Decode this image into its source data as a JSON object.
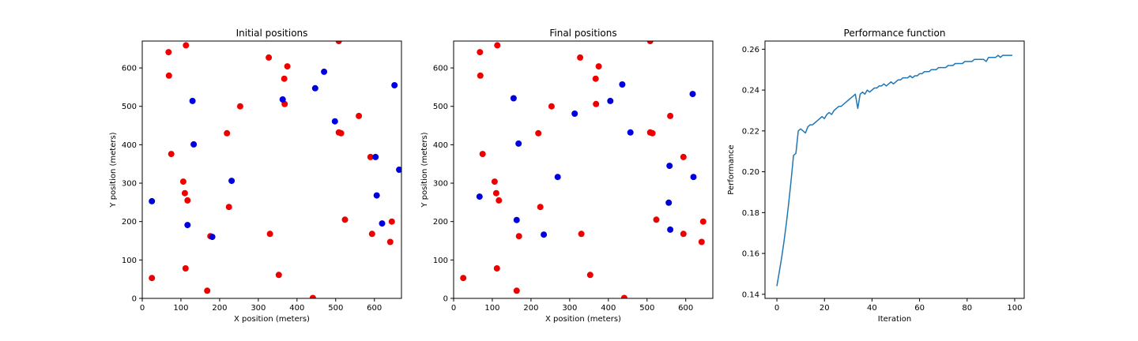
{
  "chart_data": [
    {
      "type": "scatter",
      "title": "Initial positions",
      "xlabel": "X position (meters)",
      "ylabel": "Y position (meters)",
      "xlim": [
        0,
        670
      ],
      "ylim": [
        0,
        670
      ],
      "xticks": [
        0,
        100,
        200,
        300,
        400,
        500,
        600
      ],
      "yticks": [
        0,
        100,
        200,
        300,
        400,
        500,
        600
      ],
      "grid": false,
      "series": [
        {
          "color": "#ee0000",
          "points": [
            [
              68,
              641
            ],
            [
              113,
              659
            ],
            [
              69,
              580
            ],
            [
              327,
              627
            ],
            [
              375,
              604
            ],
            [
              367,
              572
            ],
            [
              368,
              506
            ],
            [
              253,
              500
            ],
            [
              508,
              670
            ],
            [
              560,
              475
            ],
            [
              219,
              430
            ],
            [
              508,
              432
            ],
            [
              514,
              430
            ],
            [
              75,
              376
            ],
            [
              590,
              368
            ],
            [
              106,
              304
            ],
            [
              110,
              274
            ],
            [
              117,
              255
            ],
            [
              224,
              238
            ],
            [
              524,
              205
            ],
            [
              645,
              200
            ],
            [
              176,
              162
            ],
            [
              330,
              168
            ],
            [
              594,
              168
            ],
            [
              641,
              147
            ],
            [
              25,
              53
            ],
            [
              112,
              78
            ],
            [
              353,
              61
            ],
            [
              168,
              20
            ],
            [
              441,
              1
            ]
          ]
        },
        {
          "color": "#0000dd",
          "points": [
            [
              470,
              590
            ],
            [
              652,
              555
            ],
            [
              447,
              547
            ],
            [
              130,
              514
            ],
            [
              363,
              518
            ],
            [
              498,
              461
            ],
            [
              133,
              401
            ],
            [
              603,
              368
            ],
            [
              664,
              335
            ],
            [
              231,
              306
            ],
            [
              25,
              253
            ],
            [
              606,
              268
            ],
            [
              620,
              195
            ],
            [
              117,
              191
            ],
            [
              181,
              160
            ]
          ]
        }
      ]
    },
    {
      "type": "scatter",
      "title": "Final positions",
      "xlabel": "X position (meters)",
      "ylabel": "Y position (meters)",
      "xlim": [
        0,
        670
      ],
      "ylim": [
        0,
        670
      ],
      "xticks": [
        0,
        100,
        200,
        300,
        400,
        500,
        600
      ],
      "yticks": [
        0,
        100,
        200,
        300,
        400,
        500,
        600
      ],
      "grid": false,
      "series": [
        {
          "color": "#ee0000",
          "points": [
            [
              68,
              641
            ],
            [
              113,
              659
            ],
            [
              69,
              580
            ],
            [
              327,
              627
            ],
            [
              375,
              604
            ],
            [
              367,
              572
            ],
            [
              368,
              506
            ],
            [
              253,
              500
            ],
            [
              508,
              670
            ],
            [
              560,
              475
            ],
            [
              219,
              430
            ],
            [
              508,
              432
            ],
            [
              514,
              430
            ],
            [
              75,
              376
            ],
            [
              594,
              368
            ],
            [
              106,
              304
            ],
            [
              110,
              274
            ],
            [
              117,
              255
            ],
            [
              224,
              238
            ],
            [
              524,
              205
            ],
            [
              645,
              200
            ],
            [
              169,
              162
            ],
            [
              330,
              168
            ],
            [
              594,
              168
            ],
            [
              641,
              147
            ],
            [
              25,
              53
            ],
            [
              112,
              78
            ],
            [
              353,
              61
            ],
            [
              163,
              20
            ],
            [
              441,
              1
            ]
          ]
        },
        {
          "color": "#0000dd",
          "points": [
            [
              436,
              557
            ],
            [
              155,
              521
            ],
            [
              618,
              532
            ],
            [
              405,
              514
            ],
            [
              313,
              481
            ],
            [
              457,
              432
            ],
            [
              168,
              403
            ],
            [
              558,
              345
            ],
            [
              269,
              316
            ],
            [
              620,
              316
            ],
            [
              67,
              265
            ],
            [
              556,
              249
            ],
            [
              163,
              204
            ],
            [
              560,
              179
            ],
            [
              233,
              166
            ]
          ]
        }
      ]
    },
    {
      "type": "line",
      "title": "Performance function",
      "xlabel": "Iteration",
      "ylabel": "Performance",
      "xlim": [
        -5,
        104
      ],
      "ylim": [
        0.138,
        0.264
      ],
      "xticks": [
        0,
        20,
        40,
        60,
        80,
        100
      ],
      "yticks": [
        0.14,
        0.16,
        0.18,
        0.2,
        0.22,
        0.24,
        0.26
      ],
      "yticklabels": [
        "0.14",
        "0.16",
        "0.18",
        "0.20",
        "0.22",
        "0.24",
        "0.26"
      ],
      "grid": false,
      "series": [
        {
          "color": "#1f77b4",
          "values": [
            0.144,
            0.151,
            0.158,
            0.166,
            0.175,
            0.185,
            0.196,
            0.208,
            0.209,
            0.22,
            0.221,
            0.22,
            0.219,
            0.222,
            0.223,
            0.223,
            0.224,
            0.225,
            0.226,
            0.227,
            0.226,
            0.228,
            0.229,
            0.228,
            0.23,
            0.231,
            0.232,
            0.232,
            0.233,
            0.234,
            0.235,
            0.236,
            0.237,
            0.238,
            0.231,
            0.238,
            0.239,
            0.238,
            0.24,
            0.239,
            0.24,
            0.241,
            0.241,
            0.242,
            0.242,
            0.243,
            0.242,
            0.243,
            0.244,
            0.243,
            0.244,
            0.245,
            0.245,
            0.246,
            0.246,
            0.246,
            0.247,
            0.246,
            0.247,
            0.247,
            0.248,
            0.248,
            0.249,
            0.249,
            0.249,
            0.25,
            0.25,
            0.25,
            0.251,
            0.251,
            0.251,
            0.251,
            0.252,
            0.252,
            0.252,
            0.253,
            0.253,
            0.253,
            0.253,
            0.254,
            0.254,
            0.254,
            0.254,
            0.255,
            0.255,
            0.255,
            0.255,
            0.255,
            0.254,
            0.256,
            0.256,
            0.256,
            0.256,
            0.257,
            0.256,
            0.257,
            0.257,
            0.257,
            0.257,
            0.257
          ]
        }
      ]
    }
  ]
}
